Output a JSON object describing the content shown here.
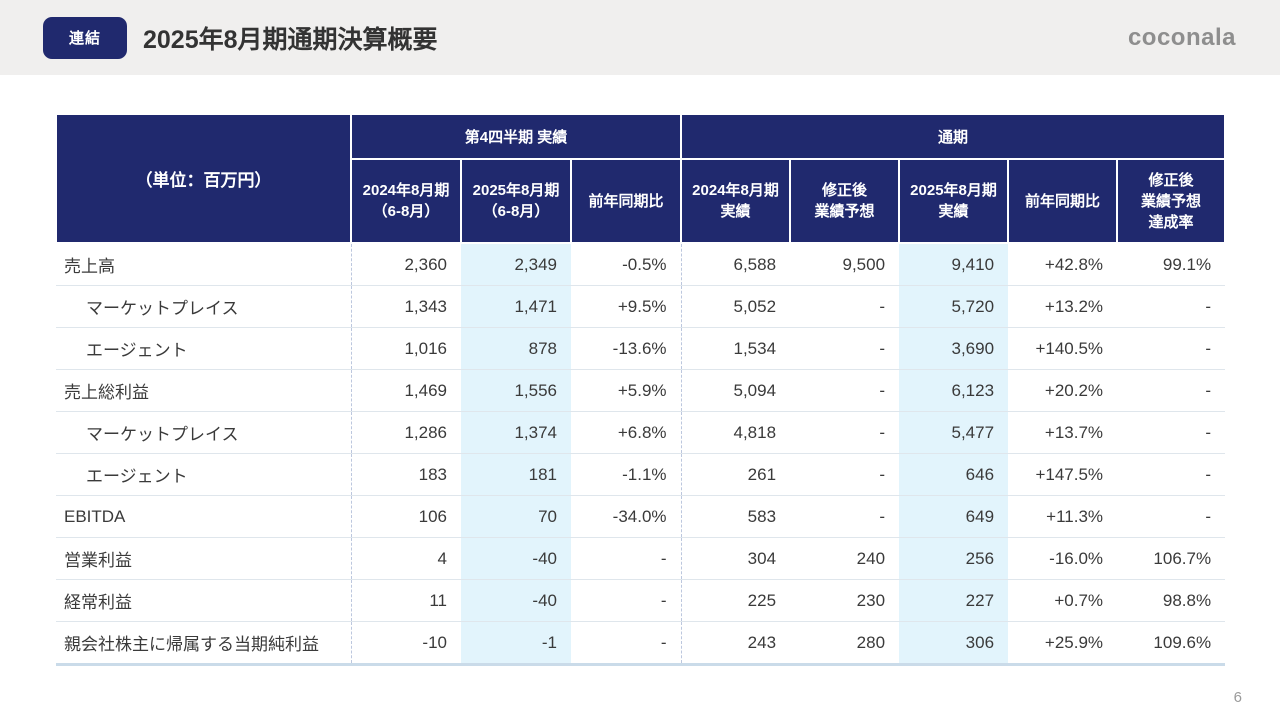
{
  "page": {
    "badge": "連結",
    "title": "2025年8月期通期決算概要",
    "logo": "coconala",
    "page_number": "6"
  },
  "table": {
    "unit_label": "（単位：百万円）",
    "groups": [
      {
        "label": "第4四半期 実績",
        "colspan": 3
      },
      {
        "label": "通期",
        "colspan": 5
      }
    ],
    "columns": [
      {
        "label": "2024年8月期\n（6-8月）",
        "highlight": false
      },
      {
        "label": "2025年8月期\n（6-8月）",
        "highlight": true
      },
      {
        "label": "前年同期比",
        "highlight": false
      },
      {
        "label": "2024年8月期\n実績",
        "highlight": false
      },
      {
        "label": "修正後\n業績予想",
        "highlight": false
      },
      {
        "label": "2025年8月期\n実績",
        "highlight": true
      },
      {
        "label": "前年同期比",
        "highlight": false
      },
      {
        "label": "修正後\n業績予想\n達成率",
        "highlight": false
      }
    ],
    "rows": [
      {
        "label": "売上高",
        "indent": false,
        "values": [
          "2,360",
          "2,349",
          "-0.5%",
          "6,588",
          "9,500",
          "9,410",
          "+42.8%",
          "99.1%"
        ]
      },
      {
        "label": "マーケットプレイス",
        "indent": true,
        "values": [
          "1,343",
          "1,471",
          "+9.5%",
          "5,052",
          "-",
          "5,720",
          "+13.2%",
          "-"
        ]
      },
      {
        "label": "エージェント",
        "indent": true,
        "values": [
          "1,016",
          "878",
          "-13.6%",
          "1,534",
          "-",
          "3,690",
          "+140.5%",
          "-"
        ]
      },
      {
        "label": "売上総利益",
        "indent": false,
        "values": [
          "1,469",
          "1,556",
          "+5.9%",
          "5,094",
          "-",
          "6,123",
          "+20.2%",
          "-"
        ]
      },
      {
        "label": "マーケットプレイス",
        "indent": true,
        "values": [
          "1,286",
          "1,374",
          "+6.8%",
          "4,818",
          "-",
          "5,477",
          "+13.7%",
          "-"
        ]
      },
      {
        "label": "エージェント",
        "indent": true,
        "values": [
          "183",
          "181",
          "-1.1%",
          "261",
          "-",
          "646",
          "+147.5%",
          "-"
        ]
      },
      {
        "label": "EBITDA",
        "indent": false,
        "values": [
          "106",
          "70",
          "-34.0%",
          "583",
          "-",
          "649",
          "+11.3%",
          "-"
        ]
      },
      {
        "label": "営業利益",
        "indent": false,
        "values": [
          "4",
          "-40",
          "-",
          "304",
          "240",
          "256",
          "-16.0%",
          "106.7%"
        ]
      },
      {
        "label": "経常利益",
        "indent": false,
        "values": [
          "11",
          "-40",
          "-",
          "225",
          "230",
          "227",
          "+0.7%",
          "98.8%"
        ]
      },
      {
        "label": "親会社株主に帰属する当期純利益",
        "indent": false,
        "values": [
          "-10",
          "-1",
          "-",
          "243",
          "280",
          "306",
          "+25.9%",
          "109.6%"
        ]
      }
    ],
    "colors": {
      "header_navy": "#20296e",
      "highlight_blue": "#e2f4fc",
      "topbar_gray": "#f0efee"
    }
  }
}
